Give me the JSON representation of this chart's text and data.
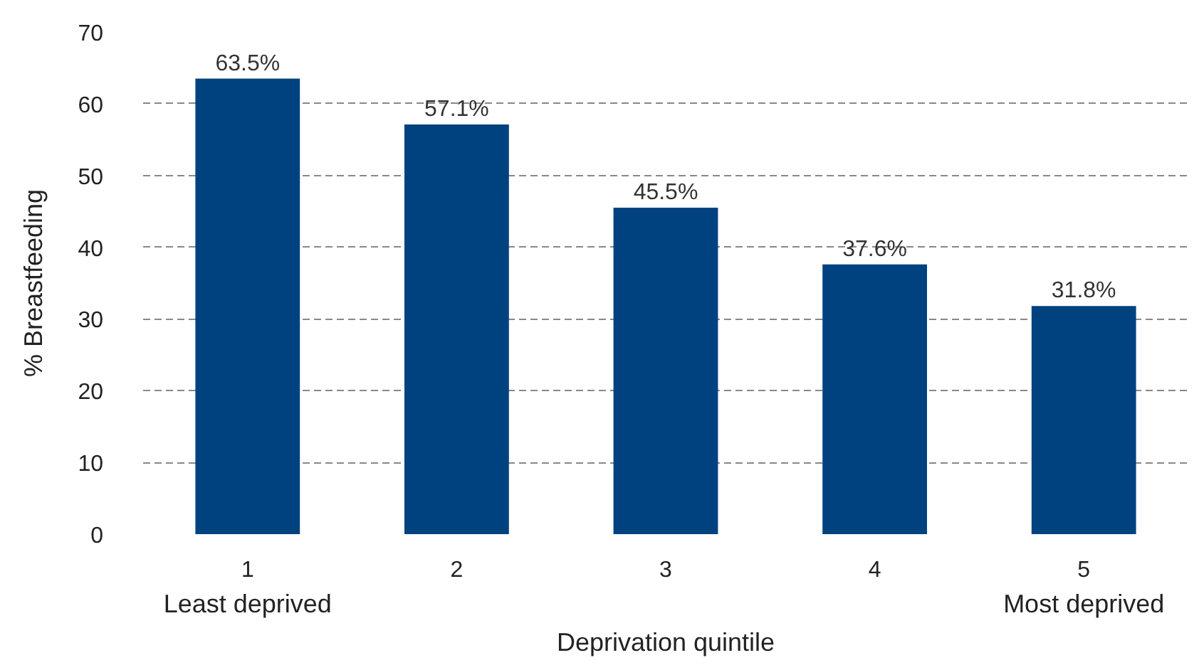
{
  "chart_data": {
    "type": "bar",
    "categories": [
      "1",
      "2",
      "3",
      "4",
      "5"
    ],
    "values": [
      63.5,
      57.1,
      45.5,
      37.6,
      31.8
    ],
    "value_labels": [
      "63.5%",
      "57.1%",
      "45.5%",
      "37.6%",
      "31.8%"
    ],
    "color": "#00427f",
    "xlabel": "Deprivation quintile",
    "ylabel": "% Breastfeeding",
    "ylim": [
      0,
      70
    ],
    "yticks": [
      0,
      10,
      20,
      30,
      40,
      50,
      60,
      70
    ],
    "grid": "y",
    "annotations": [
      "Least deprived",
      "Most deprived"
    ]
  }
}
